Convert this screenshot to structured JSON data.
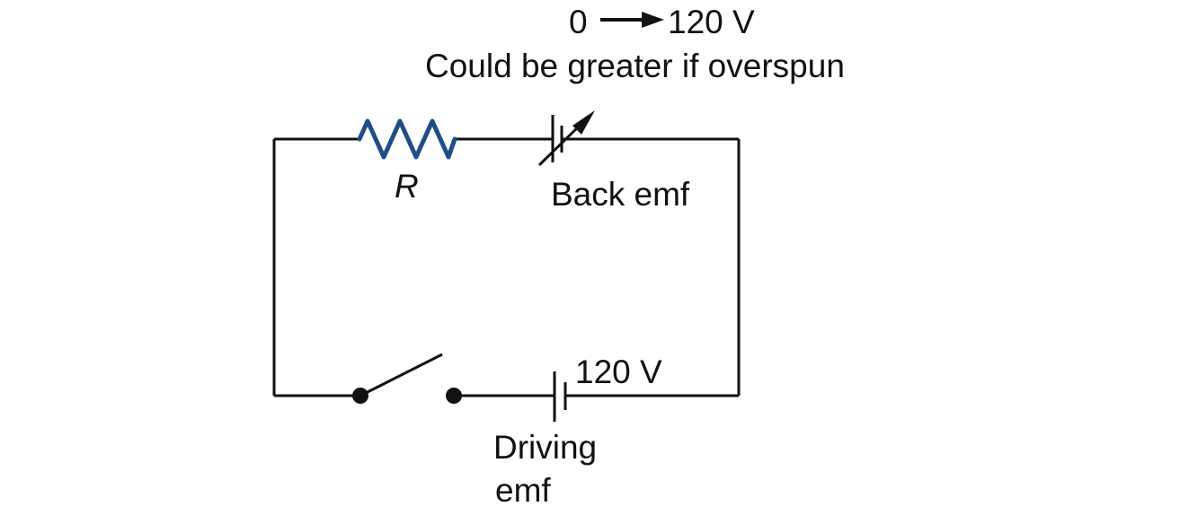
{
  "labels": {
    "range_start": "0",
    "range_end": "120 V",
    "overspun_note": "Could be greater if overspun",
    "resistor": "R",
    "back_emf": "Back emf",
    "driving_voltage": "120 V",
    "driving_emf_line1": "Driving",
    "driving_emf_line2": "emf"
  },
  "colors": {
    "wire": "#111111",
    "resistor": "#1f4e86"
  }
}
